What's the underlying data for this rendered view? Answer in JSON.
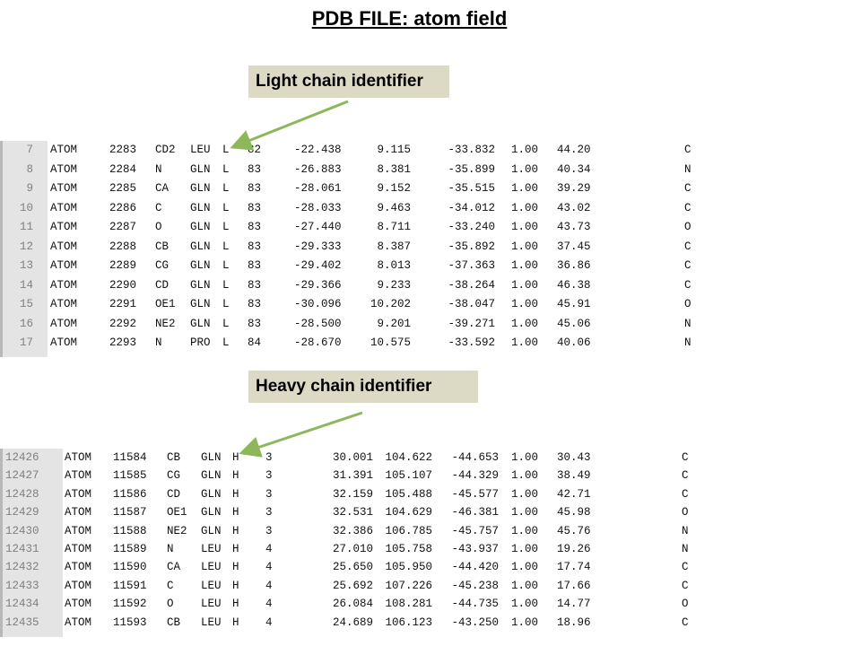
{
  "title": "PDB FILE: atom field",
  "callouts": {
    "light": "Light chain identifier",
    "heavy": "Heavy chain identifier"
  },
  "colors": {
    "callout_bg": "#dcd9c5",
    "arrow": "#8db75a",
    "gutter_bg": "#e4e4e4"
  },
  "light_chain_rows": [
    {
      "ln": "7",
      "rec": "ATOM",
      "ser": "2283",
      "atm": "CD2",
      "res": "LEU",
      "ch": "L",
      "seq": "82",
      "x": "-22.438",
      "y": "9.115",
      "z": "-33.832",
      "occ": "1.00",
      "b": "44.20",
      "el": "C"
    },
    {
      "ln": "8",
      "rec": "ATOM",
      "ser": "2284",
      "atm": "N",
      "res": "GLN",
      "ch": "L",
      "seq": "83",
      "x": "-26.883",
      "y": "8.381",
      "z": "-35.899",
      "occ": "1.00",
      "b": "40.34",
      "el": "N"
    },
    {
      "ln": "9",
      "rec": "ATOM",
      "ser": "2285",
      "atm": "CA",
      "res": "GLN",
      "ch": "L",
      "seq": "83",
      "x": "-28.061",
      "y": "9.152",
      "z": "-35.515",
      "occ": "1.00",
      "b": "39.29",
      "el": "C"
    },
    {
      "ln": "10",
      "rec": "ATOM",
      "ser": "2286",
      "atm": "C",
      "res": "GLN",
      "ch": "L",
      "seq": "83",
      "x": "-28.033",
      "y": "9.463",
      "z": "-34.012",
      "occ": "1.00",
      "b": "43.02",
      "el": "C"
    },
    {
      "ln": "11",
      "rec": "ATOM",
      "ser": "2287",
      "atm": "O",
      "res": "GLN",
      "ch": "L",
      "seq": "83",
      "x": "-27.440",
      "y": "8.711",
      "z": "-33.240",
      "occ": "1.00",
      "b": "43.73",
      "el": "O"
    },
    {
      "ln": "12",
      "rec": "ATOM",
      "ser": "2288",
      "atm": "CB",
      "res": "GLN",
      "ch": "L",
      "seq": "83",
      "x": "-29.333",
      "y": "8.387",
      "z": "-35.892",
      "occ": "1.00",
      "b": "37.45",
      "el": "C"
    },
    {
      "ln": "13",
      "rec": "ATOM",
      "ser": "2289",
      "atm": "CG",
      "res": "GLN",
      "ch": "L",
      "seq": "83",
      "x": "-29.402",
      "y": "8.013",
      "z": "-37.363",
      "occ": "1.00",
      "b": "36.86",
      "el": "C"
    },
    {
      "ln": "14",
      "rec": "ATOM",
      "ser": "2290",
      "atm": "CD",
      "res": "GLN",
      "ch": "L",
      "seq": "83",
      "x": "-29.366",
      "y": "9.233",
      "z": "-38.264",
      "occ": "1.00",
      "b": "46.38",
      "el": "C"
    },
    {
      "ln": "15",
      "rec": "ATOM",
      "ser": "2291",
      "atm": "OE1",
      "res": "GLN",
      "ch": "L",
      "seq": "83",
      "x": "-30.096",
      "y": "10.202",
      "z": "-38.047",
      "occ": "1.00",
      "b": "45.91",
      "el": "O"
    },
    {
      "ln": "16",
      "rec": "ATOM",
      "ser": "2292",
      "atm": "NE2",
      "res": "GLN",
      "ch": "L",
      "seq": "83",
      "x": "-28.500",
      "y": "9.201",
      "z": "-39.271",
      "occ": "1.00",
      "b": "45.06",
      "el": "N"
    },
    {
      "ln": "17",
      "rec": "ATOM",
      "ser": "2293",
      "atm": "N",
      "res": "PRO",
      "ch": "L",
      "seq": "84",
      "x": "-28.670",
      "y": "10.575",
      "z": "-33.592",
      "occ": "1.00",
      "b": "40.06",
      "el": "N"
    }
  ],
  "heavy_chain_rows": [
    {
      "ln": "12426",
      "rec": "ATOM",
      "ser": "11584",
      "atm": "CB",
      "res": "GLN",
      "ch": "H",
      "seq": "3",
      "x": "30.001",
      "y": "104.622",
      "z": "-44.653",
      "occ": "1.00",
      "b": "30.43",
      "el": "C"
    },
    {
      "ln": "12427",
      "rec": "ATOM",
      "ser": "11585",
      "atm": "CG",
      "res": "GLN",
      "ch": "H",
      "seq": "3",
      "x": "31.391",
      "y": "105.107",
      "z": "-44.329",
      "occ": "1.00",
      "b": "38.49",
      "el": "C"
    },
    {
      "ln": "12428",
      "rec": "ATOM",
      "ser": "11586",
      "atm": "CD",
      "res": "GLN",
      "ch": "H",
      "seq": "3",
      "x": "32.159",
      "y": "105.488",
      "z": "-45.577",
      "occ": "1.00",
      "b": "42.71",
      "el": "C"
    },
    {
      "ln": "12429",
      "rec": "ATOM",
      "ser": "11587",
      "atm": "OE1",
      "res": "GLN",
      "ch": "H",
      "seq": "3",
      "x": "32.531",
      "y": "104.629",
      "z": "-46.381",
      "occ": "1.00",
      "b": "45.98",
      "el": "O"
    },
    {
      "ln": "12430",
      "rec": "ATOM",
      "ser": "11588",
      "atm": "NE2",
      "res": "GLN",
      "ch": "H",
      "seq": "3",
      "x": "32.386",
      "y": "106.785",
      "z": "-45.757",
      "occ": "1.00",
      "b": "45.76",
      "el": "N"
    },
    {
      "ln": "12431",
      "rec": "ATOM",
      "ser": "11589",
      "atm": "N",
      "res": "LEU",
      "ch": "H",
      "seq": "4",
      "x": "27.010",
      "y": "105.758",
      "z": "-43.937",
      "occ": "1.00",
      "b": "19.26",
      "el": "N"
    },
    {
      "ln": "12432",
      "rec": "ATOM",
      "ser": "11590",
      "atm": "CA",
      "res": "LEU",
      "ch": "H",
      "seq": "4",
      "x": "25.650",
      "y": "105.950",
      "z": "-44.420",
      "occ": "1.00",
      "b": "17.74",
      "el": "C"
    },
    {
      "ln": "12433",
      "rec": "ATOM",
      "ser": "11591",
      "atm": "C",
      "res": "LEU",
      "ch": "H",
      "seq": "4",
      "x": "25.692",
      "y": "107.226",
      "z": "-45.238",
      "occ": "1.00",
      "b": "17.66",
      "el": "C"
    },
    {
      "ln": "12434",
      "rec": "ATOM",
      "ser": "11592",
      "atm": "O",
      "res": "LEU",
      "ch": "H",
      "seq": "4",
      "x": "26.084",
      "y": "108.281",
      "z": "-44.735",
      "occ": "1.00",
      "b": "14.77",
      "el": "O"
    },
    {
      "ln": "12435",
      "rec": "ATOM",
      "ser": "11593",
      "atm": "CB",
      "res": "LEU",
      "ch": "H",
      "seq": "4",
      "x": "24.689",
      "y": "106.123",
      "z": "-43.250",
      "occ": "1.00",
      "b": "18.96",
      "el": "C"
    }
  ]
}
